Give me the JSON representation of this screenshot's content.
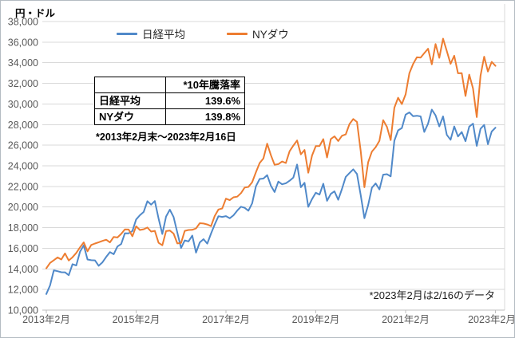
{
  "chart_data": {
    "type": "line",
    "ylabel": "円・ドル",
    "ylim": [
      10000,
      38000
    ],
    "y_ticks": [
      10000,
      12000,
      14000,
      16000,
      18000,
      20000,
      22000,
      24000,
      26000,
      28000,
      30000,
      32000,
      34000,
      36000,
      38000
    ],
    "x_tick_labels": [
      "2013年2月",
      "2015年2月",
      "2017年2月",
      "2019年2月",
      "2021年2月",
      "2023年2月"
    ],
    "x_tick_indices": [
      0,
      24,
      48,
      72,
      96,
      120
    ],
    "x_start": "2013年2月",
    "x_interval": "monthly",
    "grid": true,
    "legend_position": "top",
    "series": [
      {
        "name": "日経平均",
        "color": "#5089C9",
        "values": [
          11559,
          12398,
          13861,
          13775,
          13677,
          13668,
          13389,
          14456,
          14328,
          15662,
          16291,
          14914,
          14841,
          14828,
          14304,
          14632,
          15162,
          15621,
          15425,
          16174,
          16414,
          17460,
          17451,
          17674,
          18798,
          19207,
          19520,
          20563,
          20236,
          20585,
          18890,
          17388,
          19083,
          19747,
          19034,
          17518,
          16027,
          16759,
          16666,
          17235,
          15576,
          16569,
          16887,
          16450,
          17425,
          18308,
          19114,
          19041,
          19119,
          18909,
          19197,
          19651,
          20033,
          19925,
          19646,
          20356,
          22012,
          22725,
          22765,
          23098,
          22068,
          21454,
          22468,
          22202,
          22305,
          22554,
          22865,
          24120,
          21920,
          22351,
          20015,
          20773,
          21385,
          21206,
          22259,
          20601,
          21276,
          21522,
          20704,
          21756,
          22927,
          23294,
          23657,
          23205,
          21143,
          18917,
          20194,
          21878,
          22288,
          21710,
          23140,
          23185,
          22977,
          26434,
          27444,
          27663,
          28966,
          29179,
          28813,
          28860,
          28792,
          27284,
          28090,
          29453,
          28893,
          27822,
          28792,
          27002,
          26527,
          27821,
          26848,
          27280,
          26393,
          27802,
          28092,
          25937,
          27587,
          27968,
          26095,
          27327,
          27696
        ]
      },
      {
        "name": "NYダウ",
        "color": "#ED7D31",
        "values": [
          14054,
          14579,
          14840,
          15116,
          14910,
          15500,
          14810,
          15130,
          15546,
          16086,
          16577,
          15699,
          16322,
          16458,
          16581,
          16717,
          16827,
          16563,
          17098,
          17043,
          17391,
          17828,
          17823,
          17165,
          18133,
          17776,
          17841,
          18011,
          17620,
          17690,
          16528,
          16285,
          17664,
          17720,
          17425,
          16466,
          16517,
          17685,
          17774,
          17787,
          17930,
          18432,
          18401,
          18308,
          18142,
          19124,
          19763,
          19864,
          20812,
          20663,
          20941,
          21009,
          21350,
          21891,
          21948,
          22405,
          23377,
          24272,
          24719,
          26149,
          25029,
          24103,
          24163,
          24416,
          24271,
          25415,
          25965,
          26458,
          25116,
          25538,
          23327,
          25000,
          25916,
          25929,
          26593,
          24815,
          26600,
          26864,
          26403,
          26917,
          27046,
          28051,
          28538,
          28256,
          25409,
          21917,
          24346,
          25383,
          25813,
          26428,
          28430,
          27782,
          26502,
          29639,
          30606,
          29983,
          30932,
          32981,
          33875,
          34529,
          34503,
          34935,
          35361,
          33844,
          35820,
          34484,
          36338,
          35132,
          33893,
          34678,
          32977,
          32990,
          30775,
          32845,
          31510,
          28726,
          32733,
          34590,
          33147,
          34086,
          33697
        ]
      }
    ]
  },
  "stats_table": {
    "col_header": "*10年騰落率",
    "rows": [
      {
        "label": "日経平均",
        "value": "139.6%"
      },
      {
        "label": "NYダウ",
        "value": "139.8%"
      }
    ],
    "footnote": "*2013年2月末～2023年2月16日"
  },
  "annotation": "*2023年2月は2/16のデータ",
  "colors": {
    "gridline": "#D9D9D9",
    "axis_line": "#BFBFBF",
    "tick_text": "#595959"
  }
}
